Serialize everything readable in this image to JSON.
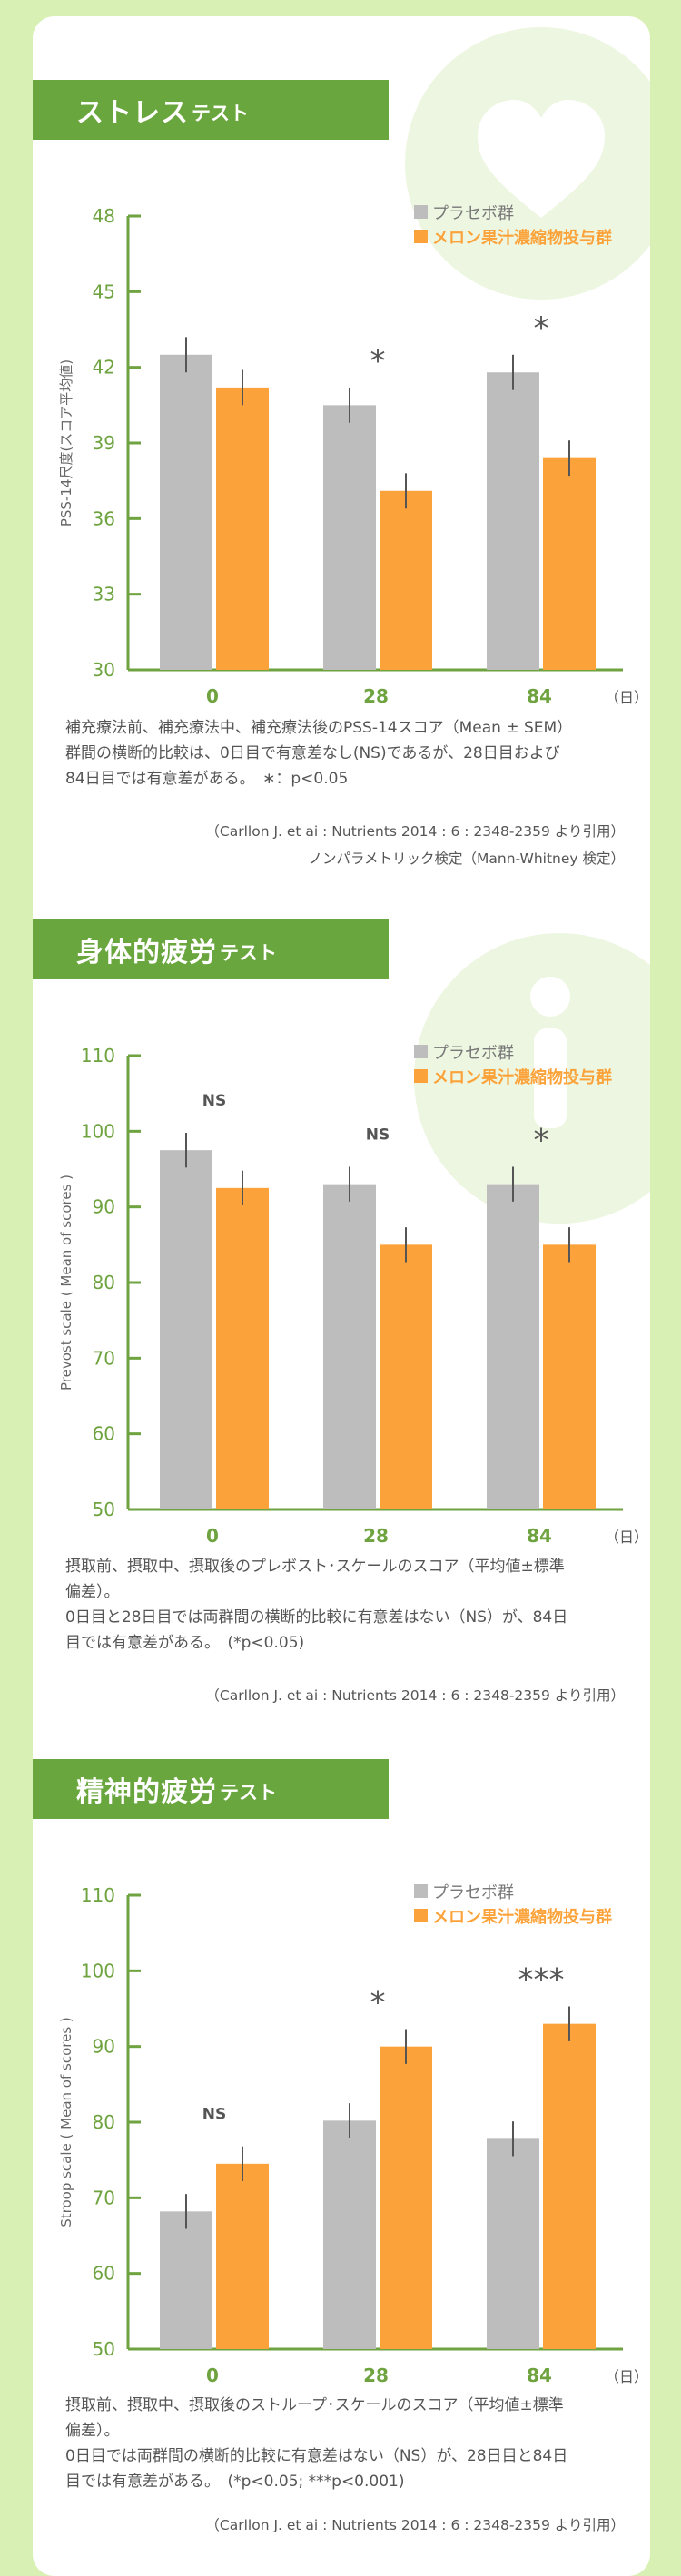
{
  "legend": {
    "placebo": "プラセボ群",
    "treatment": "メロン果汁濃縮物投与群"
  },
  "colors": {
    "placebo": "#bdbdbd",
    "treatment": "#fba33a",
    "axis": "#6ea33f",
    "banner": "#6aa63e"
  },
  "sections": [
    {
      "title_main": "ストレス",
      "title_sub": "テスト",
      "note_lines": [
        "補充療法前、補充療法中、補充療法後のPSS-14スコア（Mean ± SEM）",
        "群間の横断的比較は、0日目で有意差なし(NS)であるが、28日目および",
        "84日目では有意差がある。　∗：p<0.05"
      ],
      "citation": "（Carllon J. et ai : Nutrients 2014 : 6 : 2348-2359 より引用）",
      "citation2": "ノンパラメトリック検定（Mann-Whitney 検定）"
    },
    {
      "title_main": "身体的疲労",
      "title_sub": "テスト",
      "note_lines": [
        "摂取前、摂取中、摂取後のプレボスト･スケールのスコア（平均値±標準",
        "偏差）。",
        "0日目と28日目では両群間の横断的比較に有意差はない（NS）が、84日",
        "目では有意差がある。　(*p<0.05)"
      ],
      "citation": "（Carllon J. et ai : Nutrients 2014 : 6 : 2348-2359 より引用）",
      "citation2": ""
    },
    {
      "title_main": "精神的疲労",
      "title_sub": "テスト",
      "note_lines": [
        "摂取前、摂取中、摂取後のストループ･スケールのスコア（平均値±標準",
        "偏差）。",
        "0日目では両群間の横断的比較に有意差はない（NS）が、28日目と84日",
        "目では有意差がある。　(*p<0.05; ***p<0.001)"
      ],
      "citation": "（Carllon J. et ai : Nutrients 2014 : 6 : 2348-2359 より引用）",
      "citation2": ""
    }
  ],
  "chart_data": [
    {
      "type": "bar",
      "categories": [
        "0",
        "28",
        "84"
      ],
      "x_unit": "（日）",
      "ylabel": "PSS-14尺度(スコア平均値)",
      "ylim": [
        30,
        48
      ],
      "yticks": [
        30,
        33,
        36,
        39,
        42,
        45,
        48
      ],
      "grid": false,
      "legend_position": "top-right",
      "series": [
        {
          "name": "プラセボ群",
          "values": [
            42.5,
            40.5,
            41.8
          ],
          "errors": [
            0.7,
            0.7,
            0.7
          ]
        },
        {
          "name": "メロン果汁濃縮物投与群",
          "values": [
            41.2,
            37.1,
            38.4
          ],
          "errors": [
            0.7,
            0.7,
            0.7
          ]
        }
      ],
      "significance": [
        "",
        "*",
        "*"
      ]
    },
    {
      "type": "bar",
      "categories": [
        "0",
        "28",
        "84"
      ],
      "x_unit": "（日）",
      "ylabel": "Prevost scale ( Mean of scores )",
      "ylim": [
        50,
        110
      ],
      "yticks": [
        50,
        60,
        70,
        80,
        90,
        100,
        110
      ],
      "grid": false,
      "legend_position": "top-right",
      "series": [
        {
          "name": "プラセボ群",
          "values": [
            97.5,
            93,
            93
          ],
          "errors": [
            2.3,
            2.3,
            2.3
          ]
        },
        {
          "name": "メロン果汁濃縮物投与群",
          "values": [
            92.5,
            85,
            85
          ],
          "errors": [
            2.3,
            2.3,
            2.3
          ]
        }
      ],
      "significance": [
        "NS",
        "NS",
        "*"
      ]
    },
    {
      "type": "bar",
      "categories": [
        "0",
        "28",
        "84"
      ],
      "x_unit": "（日）",
      "ylabel": "Stroop scale ( Mean of scores )",
      "ylim": [
        50,
        110
      ],
      "yticks": [
        50,
        60,
        70,
        80,
        90,
        100,
        110
      ],
      "grid": false,
      "legend_position": "top-right",
      "series": [
        {
          "name": "プラセボ群",
          "values": [
            68.2,
            80.2,
            77.8
          ],
          "errors": [
            2.3,
            2.3,
            2.3
          ]
        },
        {
          "name": "メロン果汁濃縮物投与群",
          "values": [
            74.5,
            90,
            93
          ],
          "errors": [
            2.3,
            2.3,
            2.3
          ]
        }
      ],
      "significance": [
        "NS",
        "*",
        "***"
      ]
    }
  ]
}
